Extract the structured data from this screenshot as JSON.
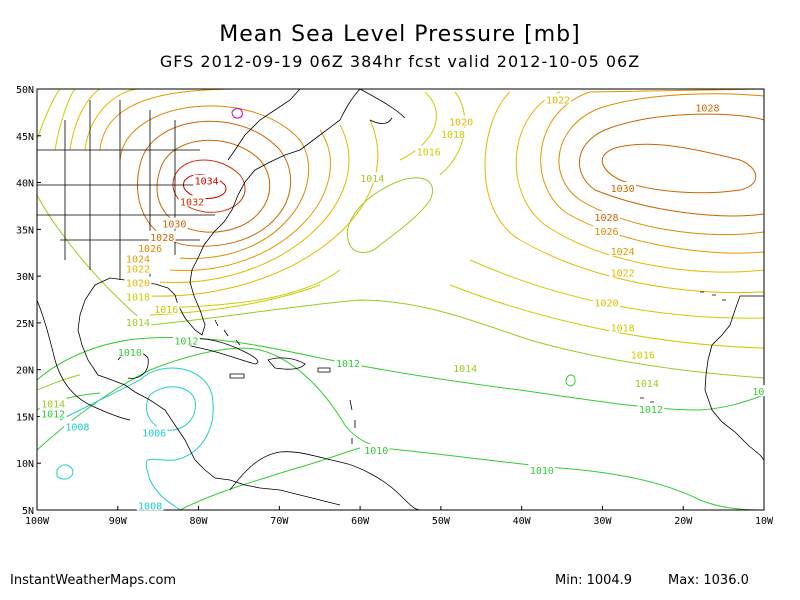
{
  "title": "Mean Sea Level Pressure [mb]",
  "subtitle": "GFS 2012-09-19 06Z 384hr fcst valid 2012-10-05 06Z",
  "footer": {
    "source": "InstantWeatherMaps.com",
    "min_label": "Min: 1004.9",
    "max_label": "Max: 1036.0"
  },
  "map": {
    "lon_range": [
      -100,
      -10
    ],
    "lat_range": [
      5,
      50
    ],
    "lat_ticks": [
      "5N",
      "10N",
      "15N",
      "20N",
      "25N",
      "30N",
      "35N",
      "40N",
      "45N",
      "50N"
    ],
    "lon_ticks": [
      "100W",
      "90W",
      "80W",
      "70W",
      "60W",
      "50W",
      "40W",
      "30W",
      "20W",
      "10W"
    ],
    "colors": {
      "coast": "#000000",
      "c1006": "#22cccc",
      "c1010": "#33cc33",
      "c1014": "#99cc22",
      "c1016": "#cccc00",
      "c1020": "#e6b800",
      "c1024": "#e69900",
      "c1026": "#dd8800",
      "c1030": "#cc6600",
      "c1032": "#cc3300",
      "c1034": "#cc0000",
      "c1036": "#cc0099"
    },
    "contour_labels": [
      {
        "text": "1022",
        "lon": -35.5,
        "lat": 48.9,
        "color": "#e6b800"
      },
      {
        "text": "1028",
        "lon": -17,
        "lat": 48,
        "color": "#cc6600"
      },
      {
        "text": "1020",
        "lon": -47.5,
        "lat": 46.5,
        "color": "#e6b800"
      },
      {
        "text": "1018",
        "lon": -48.5,
        "lat": 45.2,
        "color": "#cccc00"
      },
      {
        "text": "1016",
        "lon": -51.5,
        "lat": 43.3,
        "color": "#cccc00"
      },
      {
        "text": "1014",
        "lon": -58.5,
        "lat": 40.5,
        "color": "#99cc22"
      },
      {
        "text": "1030",
        "lon": -27.5,
        "lat": 39.4,
        "color": "#cc6600"
      },
      {
        "text": "1028",
        "lon": -29.5,
        "lat": 36.3,
        "color": "#cc6600"
      },
      {
        "text": "1026",
        "lon": -29.5,
        "lat": 34.8,
        "color": "#dd8800"
      },
      {
        "text": "1024",
        "lon": -27.5,
        "lat": 32.7,
        "color": "#e69900"
      },
      {
        "text": "1022",
        "lon": -27.5,
        "lat": 30.4,
        "color": "#e6b800"
      },
      {
        "text": "1020",
        "lon": -29.5,
        "lat": 27.2,
        "color": "#e6b800"
      },
      {
        "text": "1018",
        "lon": -27.5,
        "lat": 24.5,
        "color": "#cccc00"
      },
      {
        "text": "1016",
        "lon": -25,
        "lat": 21.6,
        "color": "#cccc00"
      },
      {
        "text": "1014",
        "lon": -24.5,
        "lat": 18.6,
        "color": "#99cc22"
      },
      {
        "text": "1012",
        "lon": -24,
        "lat": 15.8,
        "color": "#33cc33"
      },
      {
        "text": "1034",
        "lon": -79,
        "lat": 40.2,
        "color": "#cc0000"
      },
      {
        "text": "1032",
        "lon": -80.8,
        "lat": 38,
        "color": "#cc3300"
      },
      {
        "text": "1030",
        "lon": -83,
        "lat": 35.6,
        "color": "#cc6600"
      },
      {
        "text": "1028",
        "lon": -84.5,
        "lat": 34.2,
        "color": "#cc6600"
      },
      {
        "text": "1026",
        "lon": -86,
        "lat": 33,
        "color": "#dd8800"
      },
      {
        "text": "1024",
        "lon": -87.5,
        "lat": 31.9,
        "color": "#e69900"
      },
      {
        "text": "1022",
        "lon": -87.5,
        "lat": 30.8,
        "color": "#e6b800"
      },
      {
        "text": "1020",
        "lon": -87.5,
        "lat": 29.3,
        "color": "#e6b800"
      },
      {
        "text": "1018",
        "lon": -87.5,
        "lat": 27.8,
        "color": "#cccc00"
      },
      {
        "text": "1016",
        "lon": -84,
        "lat": 26.5,
        "color": "#cccc00"
      },
      {
        "text": "1014",
        "lon": -87.5,
        "lat": 25.1,
        "color": "#99cc22"
      },
      {
        "text": "1012",
        "lon": -81.5,
        "lat": 23.1,
        "color": "#33cc33"
      },
      {
        "text": "1010",
        "lon": -88.5,
        "lat": 21.9,
        "color": "#33cc33"
      },
      {
        "text": "1012",
        "lon": -61.5,
        "lat": 20.7,
        "color": "#33cc33"
      },
      {
        "text": "1014",
        "lon": -47,
        "lat": 20.2,
        "color": "#99cc22"
      },
      {
        "text": "1014",
        "lon": -98,
        "lat": 16.4,
        "color": "#99cc22"
      },
      {
        "text": "1012",
        "lon": -98,
        "lat": 15.3,
        "color": "#33cc33"
      },
      {
        "text": "1008",
        "lon": -95,
        "lat": 13.9,
        "color": "#22cccc"
      },
      {
        "text": "1006",
        "lon": -85.5,
        "lat": 13.3,
        "color": "#22cccc"
      },
      {
        "text": "1010",
        "lon": -58,
        "lat": 11.4,
        "color": "#33cc33"
      },
      {
        "text": "1010",
        "lon": -37.5,
        "lat": 9.3,
        "color": "#33cc33"
      },
      {
        "text": "1008",
        "lon": -86,
        "lat": 5.5,
        "color": "#22cccc"
      },
      {
        "text": "10",
        "lon": -10.7,
        "lat": 17.7,
        "color": "#33cc33"
      }
    ]
  }
}
